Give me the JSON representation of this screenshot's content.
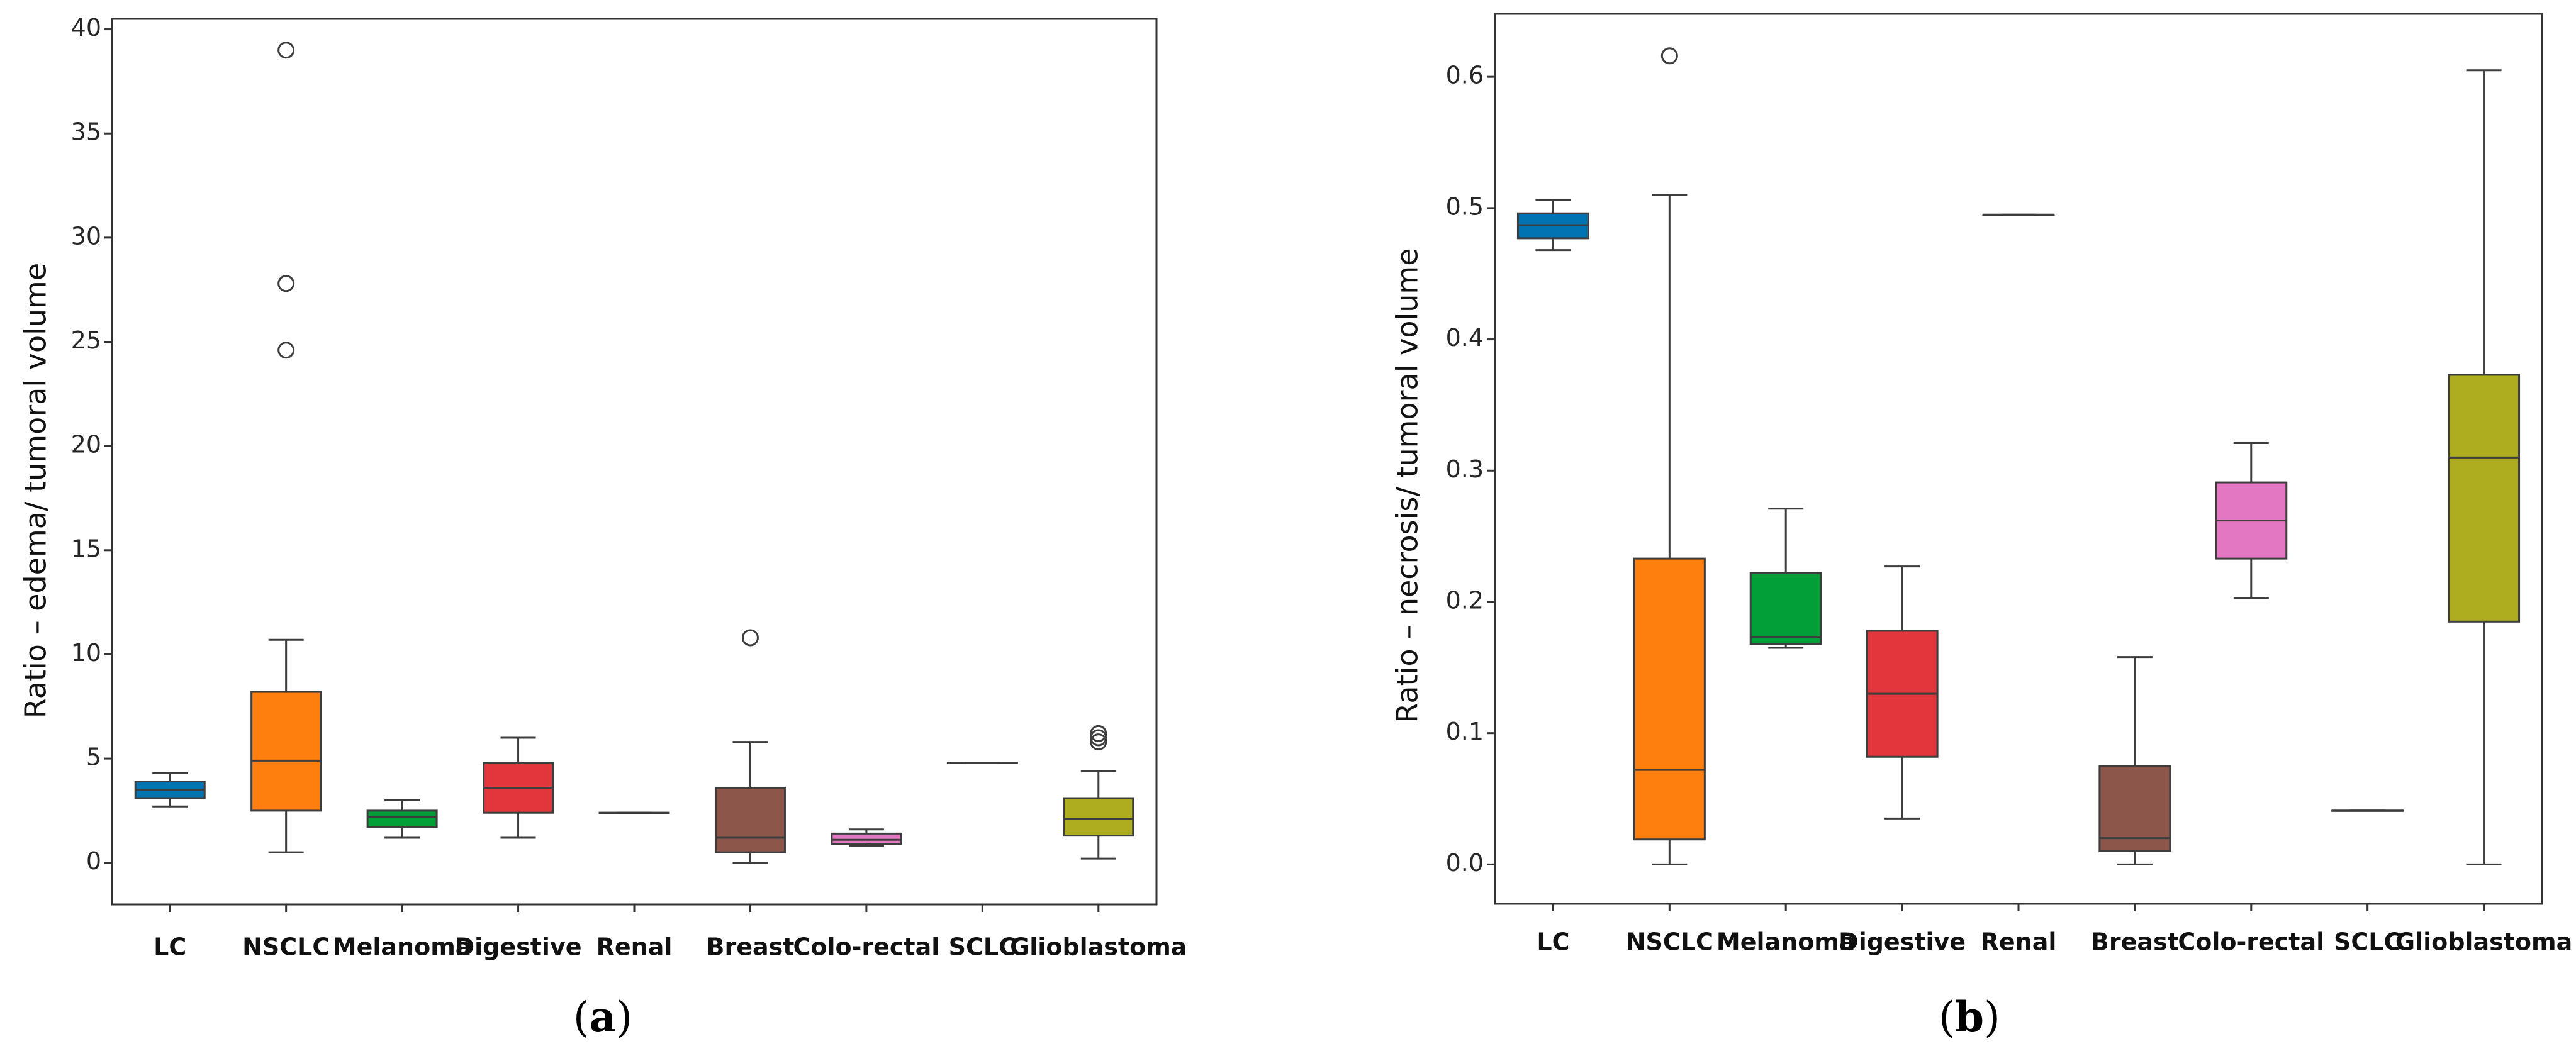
{
  "chart_data": [
    {
      "panel_label": "a",
      "type": "box",
      "title": "",
      "xlabel": "",
      "ylabel": "Ratio – edema/ tumoral volume",
      "ylim": [
        -2,
        40.5
      ],
      "yticks": [
        0,
        5,
        10,
        15,
        20,
        25,
        30,
        35,
        40
      ],
      "grid": false,
      "categories": [
        "LC",
        "NSCLC",
        "Melanoma",
        "Digestive",
        "Renal",
        "Breast",
        "Colo-rectal",
        "SCLC",
        "Glioblastoma"
      ],
      "series": [
        {
          "name": "LC",
          "color": "#0173b2",
          "whislo": 2.7,
          "q1": 3.1,
          "med": 3.5,
          "q3": 3.9,
          "whishi": 4.3,
          "fliers": []
        },
        {
          "name": "NSCLC",
          "color": "#ff7f0e",
          "whislo": 0.5,
          "q1": 2.5,
          "med": 4.9,
          "q3": 8.2,
          "whishi": 10.7,
          "fliers": [
            39.0,
            27.8,
            24.6
          ]
        },
        {
          "name": "Melanoma",
          "color": "#029e38",
          "whislo": 1.2,
          "q1": 1.7,
          "med": 2.2,
          "q3": 2.5,
          "whishi": 3.0,
          "fliers": []
        },
        {
          "name": "Digestive",
          "color": "#e0363c",
          "whislo": 1.2,
          "q1": 2.4,
          "med": 3.6,
          "q3": 4.8,
          "whishi": 6.0,
          "fliers": []
        },
        {
          "name": "Renal",
          "color": "#e0363c",
          "whislo": 2.4,
          "q1": 2.4,
          "med": 2.4,
          "q3": 2.4,
          "whishi": 2.4,
          "fliers": []
        },
        {
          "name": "Breast",
          "color": "#8c564b",
          "whislo": 0.0,
          "q1": 0.5,
          "med": 1.2,
          "q3": 3.6,
          "whishi": 5.8,
          "fliers": [
            10.8
          ]
        },
        {
          "name": "Colo-rectal",
          "color": "#e377c2",
          "whislo": 0.8,
          "q1": 0.9,
          "med": 1.1,
          "q3": 1.4,
          "whishi": 1.6,
          "fliers": []
        },
        {
          "name": "SCLC",
          "color": "#7f7f7f",
          "whislo": 4.8,
          "q1": 4.8,
          "med": 4.8,
          "q3": 4.8,
          "whishi": 4.8,
          "fliers": []
        },
        {
          "name": "Glioblastoma",
          "color": "#adad1f",
          "whislo": 0.2,
          "q1": 1.3,
          "med": 2.1,
          "q3": 3.1,
          "whishi": 4.4,
          "fliers": [
            6.2,
            6.0,
            5.8
          ]
        }
      ]
    },
    {
      "panel_label": "b",
      "type": "box",
      "title": "",
      "xlabel": "",
      "ylabel": "Ratio – necrosis/ tumoral volume",
      "ylim": [
        -0.03,
        0.648
      ],
      "yticks": [
        0.0,
        0.1,
        0.2,
        0.3,
        0.4,
        0.5,
        0.6
      ],
      "grid": false,
      "categories": [
        "LC",
        "NSCLC",
        "Melanoma",
        "Digestive",
        "Renal",
        "Breast",
        "Colo-rectal",
        "SCLC",
        "Glioblastoma"
      ],
      "series": [
        {
          "name": "LC",
          "color": "#0173b2",
          "whislo": 0.468,
          "q1": 0.477,
          "med": 0.487,
          "q3": 0.496,
          "whishi": 0.506,
          "fliers": []
        },
        {
          "name": "NSCLC",
          "color": "#ff7f0e",
          "whislo": 0.0,
          "q1": 0.019,
          "med": 0.072,
          "q3": 0.233,
          "whishi": 0.51,
          "fliers": [
            0.616
          ]
        },
        {
          "name": "Melanoma",
          "color": "#029e38",
          "whislo": 0.165,
          "q1": 0.168,
          "med": 0.173,
          "q3": 0.222,
          "whishi": 0.271,
          "fliers": []
        },
        {
          "name": "Digestive",
          "color": "#e0363c",
          "whislo": 0.035,
          "q1": 0.082,
          "med": 0.13,
          "q3": 0.178,
          "whishi": 0.227,
          "fliers": []
        },
        {
          "name": "Renal",
          "color": "#e0363c",
          "whislo": 0.495,
          "q1": 0.495,
          "med": 0.495,
          "q3": 0.495,
          "whishi": 0.495,
          "fliers": []
        },
        {
          "name": "Breast",
          "color": "#8c564b",
          "whislo": 0.0,
          "q1": 0.01,
          "med": 0.02,
          "q3": 0.075,
          "whishi": 0.158,
          "fliers": []
        },
        {
          "name": "Colo-rectal",
          "color": "#e377c2",
          "whislo": 0.203,
          "q1": 0.233,
          "med": 0.262,
          "q3": 0.291,
          "whishi": 0.321,
          "fliers": []
        },
        {
          "name": "SCLC",
          "color": "#7f7f7f",
          "whislo": 0.041,
          "q1": 0.041,
          "med": 0.041,
          "q3": 0.041,
          "whishi": 0.041,
          "fliers": []
        },
        {
          "name": "Glioblastoma",
          "color": "#adad1f",
          "whislo": 0.0,
          "q1": 0.185,
          "med": 0.31,
          "q3": 0.373,
          "whishi": 0.605,
          "fliers": []
        }
      ]
    }
  ]
}
